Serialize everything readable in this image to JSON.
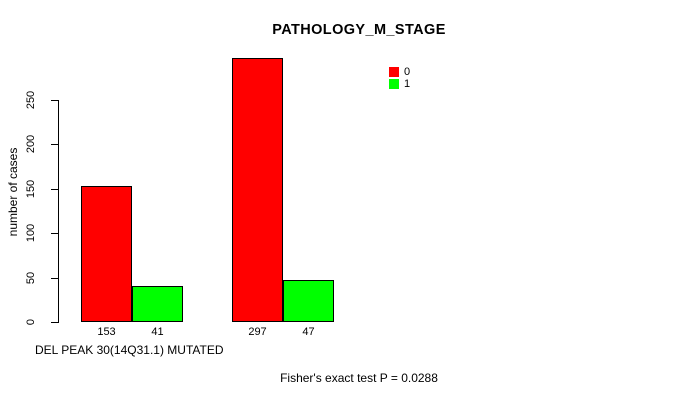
{
  "chart_data": {
    "type": "bar",
    "title": "PATHOLOGY_M_STAGE",
    "ylabel": "number of cases",
    "xlabel": "DEL PEAK 30(14Q31.1) MUTATED",
    "footnote": "Fisher's exact test P = 0.0288",
    "ylim": [
      0,
      250
    ],
    "yticks": [
      0,
      50,
      100,
      150,
      200,
      250
    ],
    "grid": false,
    "legend": {
      "position": "top-right",
      "entries": [
        {
          "label": "0",
          "color": "#FF0000"
        },
        {
          "label": "1",
          "color": "#00FF00"
        }
      ]
    },
    "series_note": "bars labeled with their value below the axis",
    "groups": [
      {
        "bars": [
          {
            "series": "0",
            "value": 153,
            "color": "#FF0000"
          },
          {
            "series": "1",
            "value": 41,
            "color": "#00FF00"
          }
        ]
      },
      {
        "bars": [
          {
            "series": "0",
            "value": 297,
            "color": "#FF0000"
          },
          {
            "series": "1",
            "value": 47,
            "color": "#00FF00"
          }
        ]
      }
    ]
  }
}
